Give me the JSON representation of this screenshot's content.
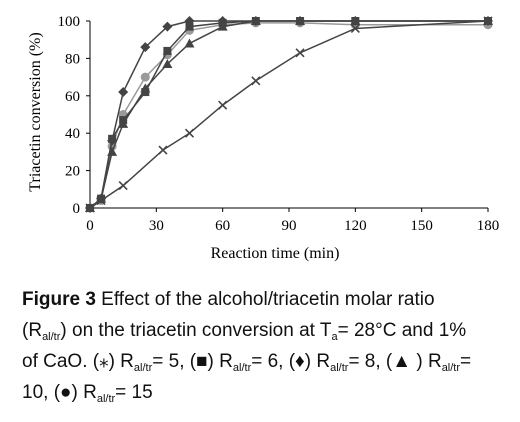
{
  "chart_data": {
    "type": "line",
    "xlabel": "Reaction time (min)",
    "ylabel": "Triacetin conversion (%)",
    "xlim": [
      0,
      180
    ],
    "ylim": [
      0,
      100
    ],
    "xticks": [
      "0",
      "30",
      "60",
      "90",
      "120",
      "150",
      "180"
    ],
    "yticks": [
      "0",
      "20",
      "40",
      "60",
      "80",
      "100"
    ],
    "grid": false,
    "legend": "none",
    "series": [
      {
        "marker": "cross",
        "color": "#444444",
        "x": [
          0,
          5,
          15,
          33,
          45,
          60,
          75,
          95,
          120,
          180
        ],
        "y": [
          0,
          4,
          12,
          31,
          40,
          55,
          68,
          83,
          96,
          100
        ]
      },
      {
        "marker": "square",
        "color": "#444444",
        "x": [
          0,
          5,
          10,
          15,
          25,
          35,
          45,
          60,
          75,
          95,
          120,
          180
        ],
        "y": [
          0,
          5,
          37,
          47,
          62,
          84,
          97,
          99,
          100,
          100,
          100,
          100
        ]
      },
      {
        "marker": "diamond",
        "color": "#444444",
        "x": [
          0,
          5,
          10,
          15,
          25,
          35,
          45,
          60,
          75,
          95,
          120,
          180
        ],
        "y": [
          0,
          5,
          36,
          62,
          86,
          97,
          100,
          100,
          100,
          100,
          100,
          100
        ]
      },
      {
        "marker": "triangle",
        "color": "#444444",
        "x": [
          0,
          5,
          10,
          15,
          25,
          35,
          45,
          60,
          75,
          95,
          120,
          180
        ],
        "y": [
          0,
          5,
          30,
          45,
          64,
          77,
          88,
          97,
          100,
          100,
          100,
          100
        ]
      },
      {
        "marker": "circle",
        "color": "#9a9a9a",
        "x": [
          0,
          5,
          10,
          15,
          25,
          35,
          45,
          60,
          75,
          95,
          120,
          180
        ],
        "y": [
          0,
          4,
          33,
          50,
          70,
          82,
          95,
          98,
          99,
          99,
          98,
          98
        ]
      }
    ]
  },
  "caption": {
    "figure_label": "Figure 3",
    "line1": " Effect of the alcohol/triacetin molar ratio",
    "line2_a": "(R",
    "line2_sub_a": "al/tr",
    "line2_b": ") on the triacetin conversion at T",
    "line2_sub_b": "a",
    "line2_c": "= 28°C and 1%",
    "line3_a": "of CaO. (⁎) R",
    "line3_sub_a": "al/tr",
    "line3_b": "= 5, (■) R",
    "line3_sub_b": "al/tr",
    "line3_c": "= 6, (♦) R",
    "line3_sub_c": "al/tr",
    "line3_d": "= 8, (▲ ) R",
    "line3_sub_d": "al/tr",
    "line3_e": "=",
    "line4_a": "10, (●) R",
    "line4_sub_a": "al/tr",
    "line4_b": "= 15"
  }
}
